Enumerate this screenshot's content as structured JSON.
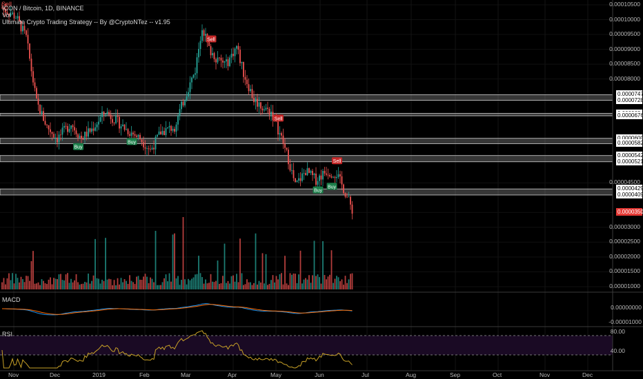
{
  "header": {
    "signal_top": "Sell",
    "symbol_line": "ICON / Bitcoin, 1D, BINANCE",
    "vol_label": "Vol",
    "strategy_line": "Ultimate Crypto Trading Strategy -- By @CryptoNTez -- v1.95"
  },
  "price_axis": [
    "0.00010500",
    "0.00010000",
    "0.00009500",
    "0.00009000",
    "0.00008500",
    "0.00008000",
    "0.00007470",
    "0.00007280",
    "0.00006840",
    "0.00006760",
    "0.00006000",
    "0.00005820",
    "0.00005420",
    "0.00005210",
    "0.00004500",
    "0.00004294",
    "0.00004090",
    "0.00003500",
    "0.00003000",
    "0.00002500",
    "0.00002000",
    "0.00001500",
    "0.00001000"
  ],
  "zones": [
    {
      "top": "0.00007470",
      "bottom": "0.00007280"
    },
    {
      "top": "0.00006840",
      "bottom": "0.00006760"
    },
    {
      "top": "0.00006000",
      "bottom": "0.00005820"
    },
    {
      "top": "0.00005420",
      "bottom": "0.00005210"
    },
    {
      "top": "0.00004294",
      "bottom": "0.00004090"
    }
  ],
  "signals": [
    {
      "label": "Sell",
      "type": "sell",
      "index": 160
    },
    {
      "label": "Buy",
      "type": "buy",
      "index": 44
    },
    {
      "label": "Sell",
      "type": "sell",
      "index": 121
    },
    {
      "label": "Buy",
      "type": "buy",
      "index": 75
    },
    {
      "label": "Buy",
      "type": "buy",
      "index": 183
    },
    {
      "label": "Sell",
      "type": "sell",
      "index": 194
    },
    {
      "label": "Buy",
      "type": "buy",
      "index": 191
    }
  ],
  "macd": {
    "title": "MACD",
    "axis": [
      "0.00000000",
      "-0.00001000"
    ]
  },
  "rsi": {
    "title": "RSI",
    "axis": [
      "80.00",
      "40.00"
    ]
  },
  "time_axis": [
    "Nov",
    "Dec",
    "2019",
    "Feb",
    "Mar",
    "Apr",
    "May",
    "Jun",
    "Jul",
    "Aug",
    "Sep",
    "Oct",
    "Nov",
    "Dec"
  ],
  "colors": {
    "up": "#26a69a",
    "down": "#ef5350",
    "sell_tag": "#c62828",
    "buy_tag": "#1b7f4a",
    "macd_line": "#2196f3",
    "signal_line": "#ff6d00",
    "rsi_line": "#c9a227",
    "rsi_bg": "#1a0a24",
    "zone": "#9e9e9e"
  }
}
